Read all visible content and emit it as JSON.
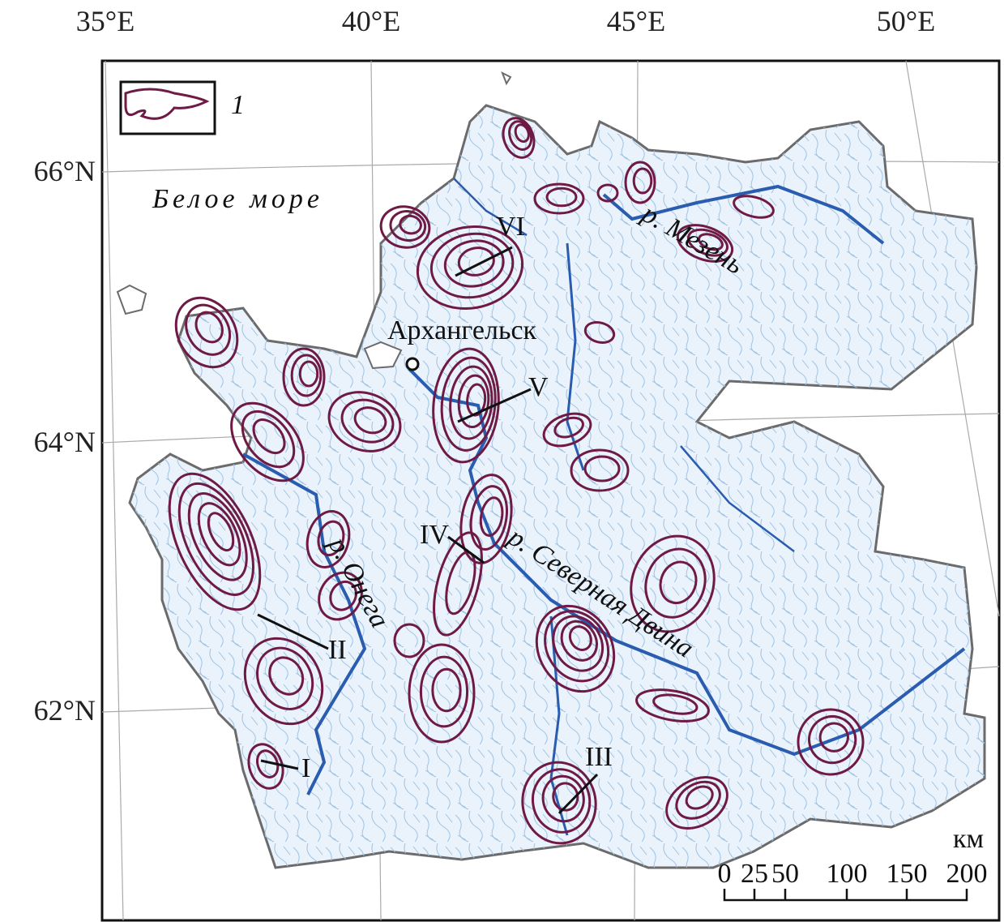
{
  "graticule": {
    "longitudes": [
      "35°E",
      "40°E",
      "45°E",
      "50°E"
    ],
    "latitudes": [
      "66°N",
      "64°N",
      "62°N"
    ]
  },
  "legend": {
    "label": "1",
    "contour_color": "#6e1a45"
  },
  "places": {
    "sea": "Белое море",
    "city": "Архангельск",
    "river_mezen": "р. Мезень",
    "river_onega": "р. Онега",
    "river_dvina": "р. Северная Двина"
  },
  "profiles": [
    "I",
    "II",
    "III",
    "IV",
    "V",
    "VI"
  ],
  "scale": {
    "unit": "км",
    "ticks": [
      "0",
      "25",
      "50",
      "100",
      "150",
      "200"
    ]
  },
  "colors": {
    "region_fill": "#e8f1fa",
    "region_border": "#6b6b6b",
    "river": "#2a5db0",
    "streams": "#9cc3e6",
    "contours": "#6e1a45"
  }
}
